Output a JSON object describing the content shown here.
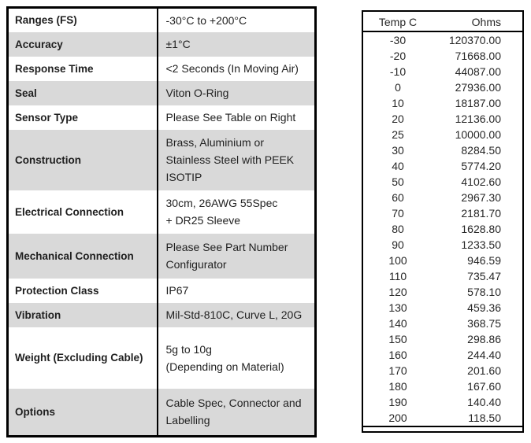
{
  "colors": {
    "row_shading": "#d9d9d9",
    "border": "#000000",
    "text": "#1f1f1f",
    "background": "#ffffff"
  },
  "spec_table": {
    "rows": [
      {
        "label": "Ranges (FS)",
        "value_lines": [
          "-30°C to +200°C"
        ]
      },
      {
        "label": "Accuracy",
        "value_lines": [
          "±1°C"
        ]
      },
      {
        "label": "Response Time",
        "value_lines": [
          "<2 Seconds (In Moving Air)"
        ]
      },
      {
        "label": "Seal",
        "value_lines": [
          "Viton O-Ring"
        ]
      },
      {
        "label": "Sensor Type",
        "value_lines": [
          "Please See Table on Right"
        ]
      },
      {
        "label": "Construction",
        "value_lines": [
          "Brass, Aluminium or",
          "Stainless Steel with PEEK",
          "ISOTIP"
        ]
      },
      {
        "label": "Electrical Connection",
        "value_lines": [
          "30cm, 26AWG 55Spec",
          "+ DR25 Sleeve"
        ]
      },
      {
        "label": "Mechanical Connection",
        "value_lines": [
          "Please See Part Number",
          "Configurator"
        ]
      },
      {
        "label": "Protection Class",
        "value_lines": [
          "IP67"
        ]
      },
      {
        "label": "Vibration",
        "value_lines": [
          "Mil-Std-810C, Curve L, 20G"
        ]
      },
      {
        "label": "Weight (Excluding Cable)",
        "value_lines": [
          "5g to 10g",
          "(Depending on Material)"
        ]
      },
      {
        "label": "Options",
        "value_lines": [
          "Cable Spec, Connector and",
          "Labelling"
        ]
      }
    ]
  },
  "resistance_table": {
    "headers": [
      "Temp C",
      "Ohms"
    ],
    "rows": [
      [
        "-30",
        "120370.00"
      ],
      [
        "-20",
        "71668.00"
      ],
      [
        "-10",
        "44087.00"
      ],
      [
        "0",
        "27936.00"
      ],
      [
        "10",
        "18187.00"
      ],
      [
        "20",
        "12136.00"
      ],
      [
        "25",
        "10000.00"
      ],
      [
        "30",
        "8284.50"
      ],
      [
        "40",
        "5774.20"
      ],
      [
        "50",
        "4102.60"
      ],
      [
        "60",
        "2967.30"
      ],
      [
        "70",
        "2181.70"
      ],
      [
        "80",
        "1628.80"
      ],
      [
        "90",
        "1233.50"
      ],
      [
        "100",
        "946.59"
      ],
      [
        "110",
        "735.47"
      ],
      [
        "120",
        "578.10"
      ],
      [
        "130",
        "459.36"
      ],
      [
        "140",
        "368.75"
      ],
      [
        "150",
        "298.86"
      ],
      [
        "160",
        "244.40"
      ],
      [
        "170",
        "201.60"
      ],
      [
        "180",
        "167.60"
      ],
      [
        "190",
        "140.40"
      ],
      [
        "200",
        "118.50"
      ]
    ]
  }
}
